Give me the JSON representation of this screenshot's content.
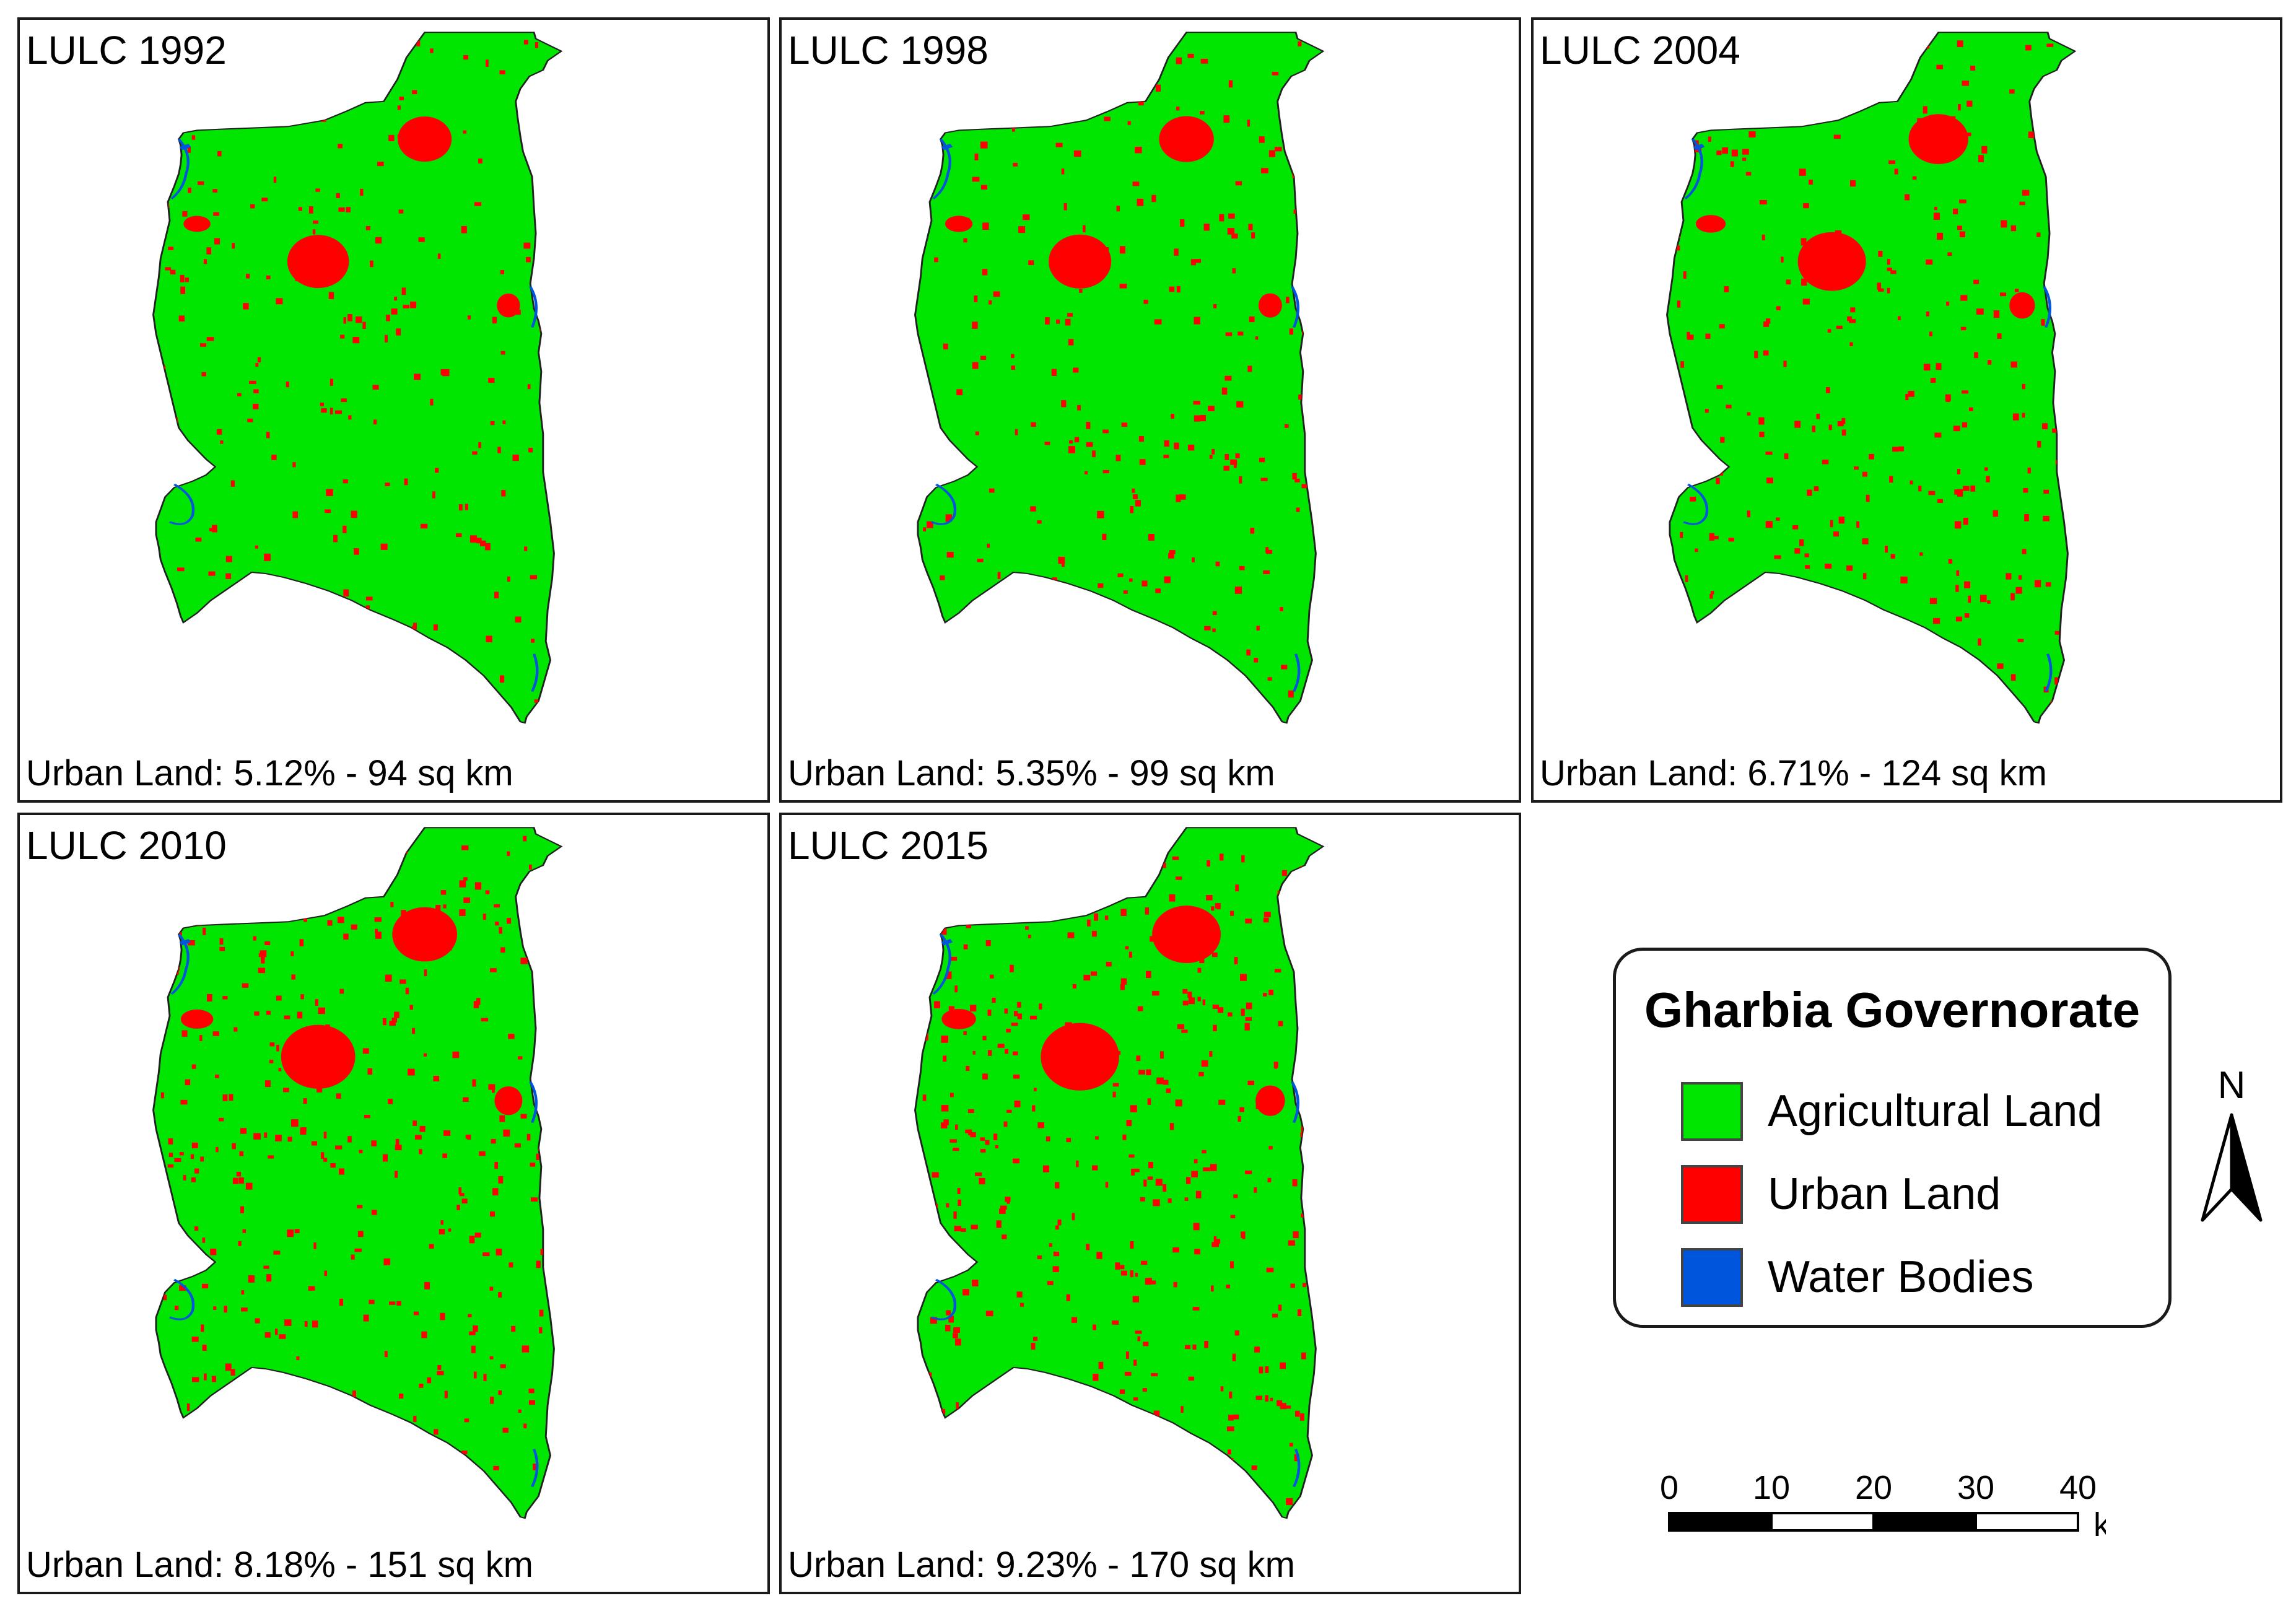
{
  "panels": [
    {
      "id": "1992",
      "title": "LULC 1992",
      "caption": "Urban Land: 5.12% - 94 sq km",
      "urban_percent": 5.12,
      "urban_area_sqkm": 94
    },
    {
      "id": "1998",
      "title": "LULC 1998",
      "caption": "Urban Land: 5.35% - 99 sq km",
      "urban_percent": 5.35,
      "urban_area_sqkm": 99
    },
    {
      "id": "2004",
      "title": "LULC 2004",
      "caption": "Urban Land: 6.71% - 124 sq km",
      "urban_percent": 6.71,
      "urban_area_sqkm": 124
    },
    {
      "id": "2010",
      "title": "LULC 2010",
      "caption": "Urban Land: 8.18% - 151 sq km",
      "urban_percent": 8.18,
      "urban_area_sqkm": 151
    },
    {
      "id": "2015",
      "title": "LULC 2015",
      "caption": "Urban Land: 9.23% - 170 sq km",
      "urban_percent": 9.23,
      "urban_area_sqkm": 170
    }
  ],
  "legend": {
    "title": "Gharbia Governorate",
    "items": [
      {
        "label": "Agricultural Land",
        "color": "#00e600"
      },
      {
        "label": "Urban Land",
        "color": "#ff0000"
      },
      {
        "label": "Water Bodies",
        "color": "#0055dd"
      }
    ]
  },
  "north_arrow": {
    "label": "N"
  },
  "scale_bar": {
    "ticks": [
      "0",
      "10",
      "20",
      "30",
      "40"
    ],
    "unit": "km"
  },
  "colors": {
    "agricultural": "#00e600",
    "urban": "#ff0000",
    "water": "#0055dd",
    "outline": "#222222"
  }
}
